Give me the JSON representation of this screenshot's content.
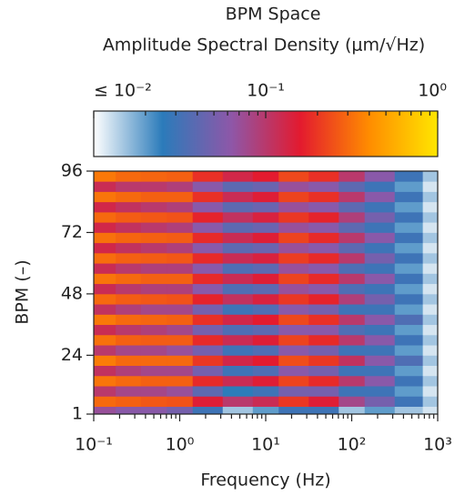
{
  "chart_data": {
    "type": "heatmap",
    "title": "BPM Space",
    "subtitle": "Amplitude Spectral Density (μm/√Hz)",
    "x_label": "Frequency (Hz)",
    "y_label": "BPM (–)",
    "log_x": true,
    "xlim": [
      0.1,
      1000
    ],
    "xticks": [
      {
        "value": 0.1,
        "label": "10⁻¹"
      },
      {
        "value": 1,
        "label": "10⁰"
      },
      {
        "value": 10,
        "label": "10¹"
      },
      {
        "value": 100,
        "label": "10²"
      },
      {
        "value": 1000,
        "label": "10³"
      }
    ],
    "ylim": [
      1,
      96
    ],
    "yticks": [
      1,
      24,
      48,
      72,
      96
    ],
    "colorbar": {
      "log": true,
      "lim": [
        0.01,
        1
      ],
      "ticks": [
        {
          "value": 0.01,
          "label": "≤ 10⁻²"
        },
        {
          "value": 0.1,
          "label": "10⁻¹"
        },
        {
          "value": 1,
          "label": "10⁰"
        }
      ],
      "colormap": [
        "#ffffff",
        "#2b7bba",
        "#8e57a8",
        "#e31a2f",
        "#ff8c00",
        "#ffe600"
      ]
    },
    "x": [
      0.13,
      0.25,
      0.5,
      1,
      2,
      5,
      10,
      20,
      50,
      100,
      200,
      500,
      900
    ],
    "y": [
      2,
      6,
      10,
      14,
      18,
      22,
      26,
      30,
      34,
      38,
      42,
      46,
      50,
      54,
      58,
      62,
      66,
      70,
      74,
      78,
      82,
      86,
      90,
      94
    ],
    "z": [
      [
        0.07,
        0.06,
        0.06,
        0.05,
        0.03,
        0.015,
        0.02,
        0.03,
        0.03,
        0.015,
        0.02,
        0.015,
        0.012
      ],
      [
        0.3,
        0.28,
        0.26,
        0.25,
        0.15,
        0.1,
        0.12,
        0.2,
        0.15,
        0.08,
        0.05,
        0.03,
        0.015
      ],
      [
        0.1,
        0.08,
        0.08,
        0.07,
        0.04,
        0.025,
        0.03,
        0.05,
        0.05,
        0.03,
        0.03,
        0.02,
        0.012
      ],
      [
        0.33,
        0.3,
        0.28,
        0.28,
        0.18,
        0.12,
        0.15,
        0.22,
        0.18,
        0.1,
        0.06,
        0.03,
        0.015
      ],
      [
        0.11,
        0.09,
        0.08,
        0.08,
        0.05,
        0.03,
        0.035,
        0.06,
        0.05,
        0.03,
        0.03,
        0.02,
        0.012
      ],
      [
        0.35,
        0.3,
        0.3,
        0.3,
        0.2,
        0.13,
        0.16,
        0.24,
        0.2,
        0.11,
        0.06,
        0.035,
        0.015
      ],
      [
        0.1,
        0.08,
        0.08,
        0.07,
        0.05,
        0.03,
        0.035,
        0.06,
        0.05,
        0.03,
        0.03,
        0.02,
        0.012
      ],
      [
        0.32,
        0.28,
        0.27,
        0.27,
        0.18,
        0.12,
        0.15,
        0.22,
        0.18,
        0.1,
        0.06,
        0.03,
        0.015
      ],
      [
        0.12,
        0.1,
        0.09,
        0.08,
        0.05,
        0.035,
        0.04,
        0.06,
        0.06,
        0.035,
        0.03,
        0.02,
        0.012
      ],
      [
        0.34,
        0.3,
        0.29,
        0.28,
        0.19,
        0.13,
        0.16,
        0.23,
        0.19,
        0.1,
        0.06,
        0.035,
        0.015
      ],
      [
        0.11,
        0.09,
        0.08,
        0.08,
        0.05,
        0.03,
        0.035,
        0.06,
        0.05,
        0.03,
        0.03,
        0.02,
        0.012
      ],
      [
        0.3,
        0.27,
        0.26,
        0.25,
        0.17,
        0.11,
        0.14,
        0.2,
        0.17,
        0.09,
        0.05,
        0.03,
        0.015
      ],
      [
        0.12,
        0.1,
        0.09,
        0.09,
        0.06,
        0.035,
        0.04,
        0.07,
        0.06,
        0.035,
        0.03,
        0.02,
        0.012
      ],
      [
        0.33,
        0.3,
        0.28,
        0.28,
        0.18,
        0.12,
        0.15,
        0.22,
        0.18,
        0.1,
        0.06,
        0.03,
        0.015
      ],
      [
        0.12,
        0.1,
        0.09,
        0.09,
        0.06,
        0.035,
        0.04,
        0.07,
        0.06,
        0.035,
        0.03,
        0.02,
        0.012
      ],
      [
        0.31,
        0.28,
        0.27,
        0.26,
        0.18,
        0.12,
        0.14,
        0.21,
        0.18,
        0.1,
        0.05,
        0.03,
        0.015
      ],
      [
        0.13,
        0.11,
        0.1,
        0.09,
        0.06,
        0.04,
        0.045,
        0.07,
        0.06,
        0.04,
        0.03,
        0.02,
        0.012
      ],
      [
        0.32,
        0.29,
        0.28,
        0.27,
        0.18,
        0.12,
        0.15,
        0.22,
        0.18,
        0.1,
        0.06,
        0.03,
        0.015
      ],
      [
        0.13,
        0.11,
        0.1,
        0.09,
        0.06,
        0.04,
        0.045,
        0.07,
        0.06,
        0.04,
        0.03,
        0.02,
        0.012
      ],
      [
        0.3,
        0.27,
        0.26,
        0.25,
        0.17,
        0.11,
        0.14,
        0.2,
        0.17,
        0.09,
        0.05,
        0.03,
        0.015
      ],
      [
        0.13,
        0.11,
        0.1,
        0.09,
        0.06,
        0.04,
        0.045,
        0.07,
        0.06,
        0.04,
        0.03,
        0.02,
        0.012
      ],
      [
        0.33,
        0.3,
        0.28,
        0.28,
        0.19,
        0.12,
        0.15,
        0.22,
        0.19,
        0.1,
        0.06,
        0.03,
        0.015
      ],
      [
        0.12,
        0.1,
        0.1,
        0.09,
        0.06,
        0.04,
        0.045,
        0.07,
        0.06,
        0.04,
        0.03,
        0.02,
        0.012
      ],
      [
        0.34,
        0.3,
        0.29,
        0.28,
        0.19,
        0.13,
        0.16,
        0.23,
        0.19,
        0.1,
        0.06,
        0.03,
        0.015
      ]
    ]
  }
}
